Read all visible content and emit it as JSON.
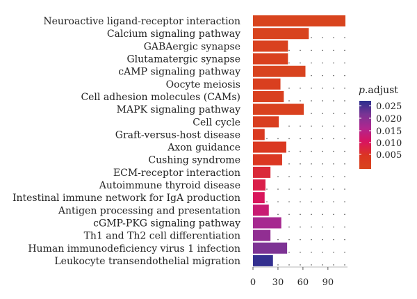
{
  "chart_data": {
    "type": "bar",
    "orientation": "horizontal",
    "categories": [
      "Neuroactive ligand-receptor interaction",
      "Calcium signaling pathway",
      "GABAergic synapse",
      "Glutamatergic synapse",
      "cAMP signaling pathway",
      "Oocyte meiosis",
      "Cell adhesion molecules (CAMs)",
      "MAPK signaling pathway",
      "Cell cycle",
      "Graft-versus-host disease",
      "Axon guidance",
      "Cushing syndrome",
      "ECM-receptor interaction",
      "Autoimmune thyroid disease",
      "Intestinal immune network for IgA production",
      "Antigen processing and presentation",
      "cGMP-PKG signaling pathway",
      "Th1 and Th2 cell differentiation",
      "Human immunodeficiency virus 1 infection",
      "Leukocyte transendothelial migration"
    ],
    "values": [
      111,
      67,
      42,
      42,
      63,
      33,
      37,
      61,
      31,
      14,
      40,
      35,
      21,
      15,
      14,
      19,
      34,
      21,
      41,
      24
    ],
    "p_adjust": [
      0.0005,
      0.0008,
      0.0015,
      0.0018,
      0.001,
      0.0022,
      0.002,
      0.0015,
      0.0025,
      0.004,
      0.0045,
      0.005,
      0.0075,
      0.009,
      0.0105,
      0.013,
      0.017,
      0.019,
      0.021,
      0.026
    ],
    "xticks": [
      "0",
      "30",
      "60",
      "90"
    ],
    "xlim": [
      0,
      115
    ],
    "legend": {
      "title_italic": "p",
      "title_rest": ".adjust",
      "ticks": [
        "0.025",
        "0.020",
        "0.015",
        "0.010",
        "0.005"
      ],
      "range": [
        0.0003,
        0.0265
      ],
      "placement": "right",
      "colors": [
        "#2b2f8e",
        "#7a3494",
        "#b0268f",
        "#d9145f",
        "#db3522",
        "#d8451e"
      ]
    },
    "grid": "dotted"
  }
}
